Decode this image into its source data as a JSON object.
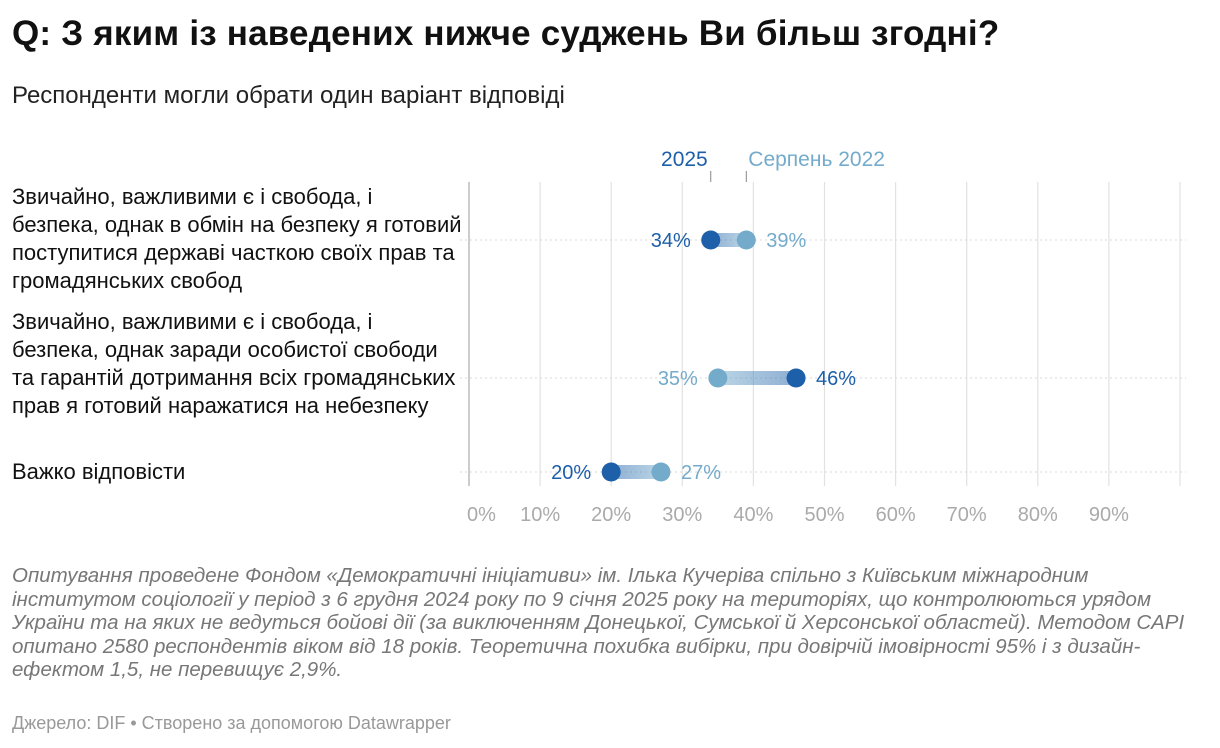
{
  "title": "Q: З яким із наведених нижче суджень Ви більш згодні?",
  "subtitle": "Респонденти могли обрати один варіант відповіді",
  "chart_data": {
    "type": "range-dot",
    "xlim": [
      0,
      100
    ],
    "x_ticks": [
      0,
      10,
      20,
      30,
      40,
      50,
      60,
      70,
      80,
      90
    ],
    "x_tick_labels": [
      "0%",
      "10%",
      "20%",
      "30%",
      "40%",
      "50%",
      "60%",
      "70%",
      "80%",
      "90%"
    ],
    "legend": [
      {
        "name": "2025",
        "color": "#1d5fa8"
      },
      {
        "name": "Серпень 2022",
        "color": "#74abcb"
      }
    ],
    "categories": [
      "Звичайно, важливими є і свобода, і безпека, однак в обмін на безпеку я готовий поступитися державі часткою своїх прав та громадянських свобод",
      "Звичайно, важливими є і свобода, і безпека, однак заради особистої свободи та гарантій дотримання всіх громадянських прав я готовий наражатися на небезпеку",
      "Важко відповісти"
    ],
    "series": [
      {
        "name": "2025",
        "values": [
          34,
          46,
          20
        ],
        "labels": [
          "34%",
          "46%",
          "20%"
        ]
      },
      {
        "name": "Серпень 2022",
        "values": [
          39,
          35,
          27
        ],
        "labels": [
          "39%",
          "35%",
          "27%"
        ]
      }
    ]
  },
  "notes": "Опитування проведене Фондом «Демократичні ініціативи» ім. Ілька Кучеріва спільно з Київським міжнародним інститутом соціології у період з 6 грудня 2024 року по 9 січня 2025 року на територіях, що контролюються урядом України та на яких не ведуться бойові дії (за виключенням Донецької, Сумської й Херсонської областей). Методом CAPI опитано 2580 респондентів віком від 18 років. Теоретична похибка вибірки, при довірчій імовірності 95% і з дизайн-ефектом 1,5, не перевищує 2,9%.",
  "source": "Джерело: DIF • Створено за допомогою Datawrapper"
}
